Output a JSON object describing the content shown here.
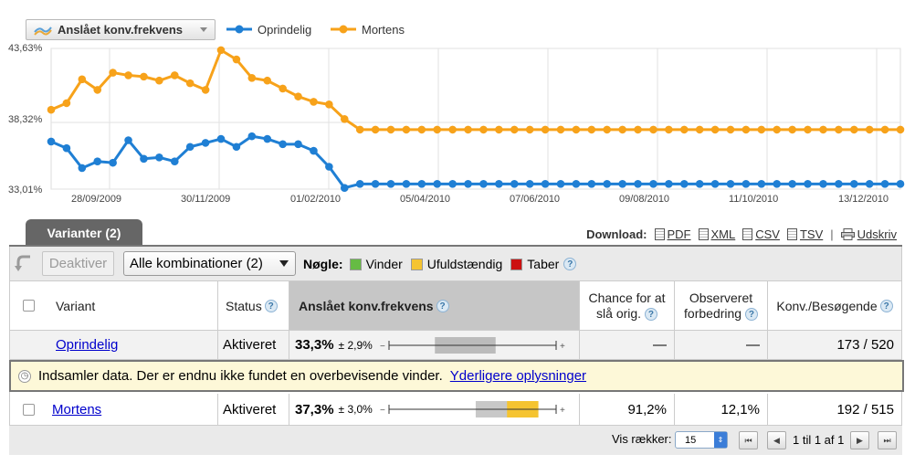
{
  "chart_header": {
    "metric_label": "Anslået konv.frekvens",
    "legend": [
      {
        "name": "Oprindelig",
        "color": "#1f7fd4"
      },
      {
        "name": "Mortens",
        "color": "#f7a21a"
      }
    ]
  },
  "chart_data": {
    "type": "line",
    "title": "",
    "xlabel": "",
    "ylabel": "",
    "y_ticks": [
      "43,63%",
      "38,32%",
      "33,01%"
    ],
    "ylim": [
      33.01,
      43.63
    ],
    "x_ticks": [
      "28/09/2009",
      "30/11/2009",
      "01/02/2010",
      "05/04/2010",
      "07/06/2010",
      "09/08/2010",
      "11/10/2010",
      "13/12/2010"
    ],
    "grid": true,
    "legend_position": "top",
    "series": [
      {
        "name": "Oprindelig",
        "color": "#1f7fd4",
        "values": [
          36.6,
          36.1,
          34.6,
          35.1,
          35.0,
          36.7,
          35.3,
          35.4,
          35.1,
          36.2,
          36.5,
          36.8,
          36.2,
          37.0,
          36.8,
          36.4,
          36.4,
          35.9,
          34.7,
          33.1,
          33.4,
          33.4,
          33.4,
          33.4,
          33.4,
          33.4,
          33.4,
          33.4,
          33.4,
          33.4,
          33.4,
          33.4,
          33.4,
          33.4,
          33.4,
          33.4,
          33.4,
          33.4,
          33.4,
          33.4,
          33.4,
          33.4,
          33.4,
          33.4,
          33.4,
          33.4,
          33.4,
          33.4,
          33.4,
          33.4,
          33.4,
          33.4,
          33.4,
          33.4,
          33.4,
          33.4
        ]
      },
      {
        "name": "Mortens",
        "color": "#f7a21a",
        "values": [
          39.0,
          39.5,
          41.3,
          40.5,
          41.8,
          41.6,
          41.5,
          41.2,
          41.6,
          41.0,
          40.5,
          43.5,
          42.8,
          41.4,
          41.2,
          40.6,
          40.0,
          39.6,
          39.4,
          38.3,
          37.5,
          37.5,
          37.5,
          37.5,
          37.5,
          37.5,
          37.5,
          37.5,
          37.5,
          37.5,
          37.5,
          37.5,
          37.5,
          37.5,
          37.5,
          37.5,
          37.5,
          37.5,
          37.5,
          37.5,
          37.5,
          37.5,
          37.5,
          37.5,
          37.5,
          37.5,
          37.5,
          37.5,
          37.5,
          37.5,
          37.5,
          37.5,
          37.5,
          37.5,
          37.5,
          37.5
        ]
      }
    ]
  },
  "tab": {
    "label": "Varianter (2)"
  },
  "download": {
    "label": "Download:",
    "pdf": "PDF",
    "xml": "XML",
    "csv": "CSV",
    "tsv": "TSV",
    "separator": "|",
    "print": "Udskriv"
  },
  "toolbar": {
    "deactivate": "Deaktiver",
    "combinations": "Alle kombinationer (2)",
    "key_label": "Nøgle:",
    "key_items": [
      {
        "label": "Vinder",
        "color": "#66bb44"
      },
      {
        "label": "Ufuldstændig",
        "color": "#f5c431"
      },
      {
        "label": "Taber",
        "color": "#cc1111"
      }
    ]
  },
  "table": {
    "headers": {
      "variant": "Variant",
      "status": "Status",
      "rate": "Anslået konv.frekvens",
      "chance": "Chance for at slå orig.",
      "improvement": "Observeret forbedring",
      "conv": "Konv./Besøgende"
    },
    "rows": [
      {
        "variant": "Oprindelig",
        "status": "Aktiveret",
        "rate": "33,3%",
        "interval": "± 2,9%",
        "range": [
          30.4,
          36.2
        ],
        "bar_fill": "#bbbbbb",
        "chance": "—",
        "improvement": "—",
        "conv": "173 / 520"
      },
      {
        "variant": "Mortens",
        "status": "Aktiveret",
        "rate": "37,3%",
        "interval": "± 3,0%",
        "range": [
          34.3,
          40.3
        ],
        "bar_fill": "#f5c431",
        "chance": "91,2%",
        "improvement": "12,1%",
        "conv": "192 / 515"
      }
    ],
    "bar_scale": [
      26,
      42
    ]
  },
  "notice": {
    "text": "Indsamler data. Der er endnu ikke fundet en overbevisende vinder.",
    "link": "Yderligere oplysninger"
  },
  "pager": {
    "rows_label": "Vis rækker:",
    "rows_value": "15",
    "page_info": "1 til 1 af 1"
  }
}
